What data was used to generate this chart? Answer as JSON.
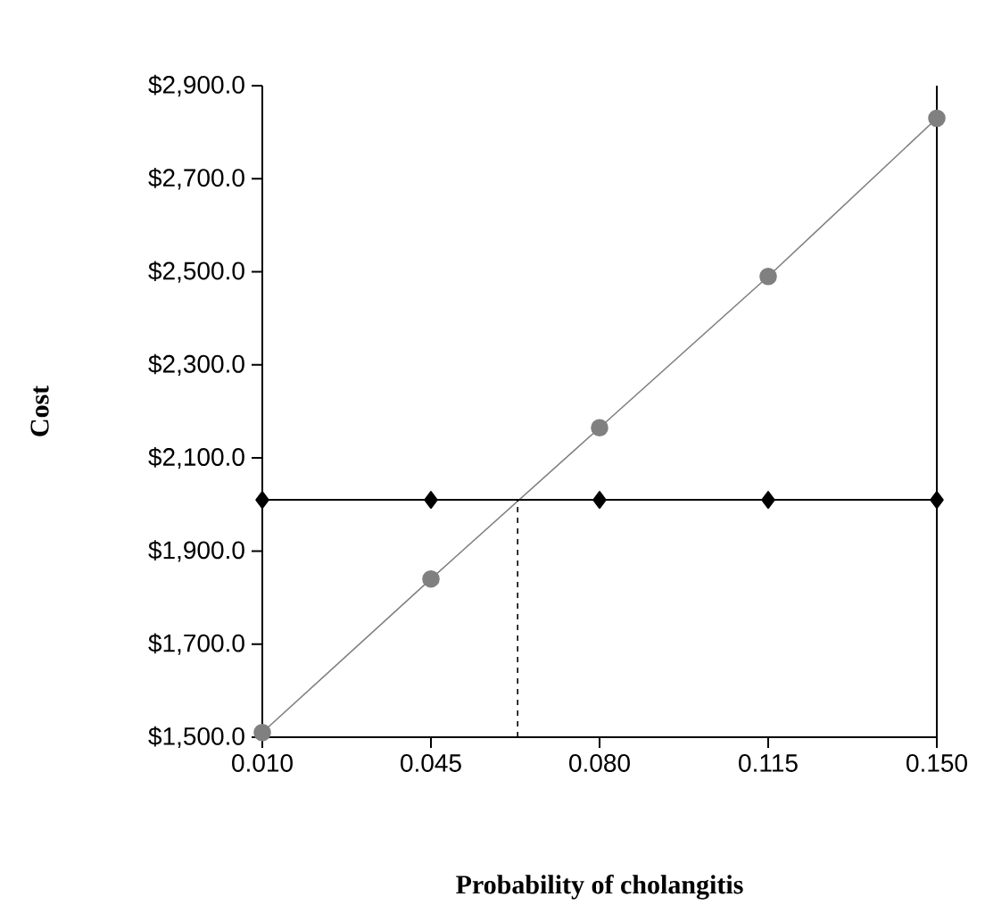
{
  "chart_data": {
    "type": "line",
    "xlabel": "Probability of cholangitis",
    "ylabel": "Cost",
    "xlim": [
      0.01,
      0.15
    ],
    "xticks": [
      {
        "value": 0.01,
        "label": "0.010"
      },
      {
        "value": 0.045,
        "label": "0.045"
      },
      {
        "value": 0.08,
        "label": "0.080"
      },
      {
        "value": 0.115,
        "label": "0.115"
      },
      {
        "value": 0.15,
        "label": "0.150"
      }
    ],
    "ylim": [
      1500,
      2900
    ],
    "yticks": [
      {
        "value": 1500,
        "label": "$1,500.0"
      },
      {
        "value": 1700,
        "label": "$1,700.0"
      },
      {
        "value": 1900,
        "label": "$1,900.0"
      },
      {
        "value": 2100,
        "label": "$2,100.0"
      },
      {
        "value": 2300,
        "label": "$2,300.0"
      },
      {
        "value": 2500,
        "label": "$2,500.0"
      },
      {
        "value": 2700,
        "label": "$2,700.0"
      },
      {
        "value": 2900,
        "label": "$2,900.0"
      }
    ],
    "grid": false,
    "x": [
      0.01,
      0.045,
      0.08,
      0.115,
      0.15
    ],
    "series": [
      {
        "color": "#808080",
        "marker": "circle",
        "values": [
          1510,
          1840,
          2165,
          2490,
          2830
        ]
      },
      {
        "color": "#000000",
        "marker": "diamond",
        "values": [
          2010,
          2010,
          2010,
          2010,
          2010
        ]
      },
      {
        "color": "#000000",
        "marker": "none",
        "line_style": "dashed",
        "x": [
          0.063,
          0.063
        ],
        "values": [
          1500,
          2010
        ]
      }
    ]
  }
}
